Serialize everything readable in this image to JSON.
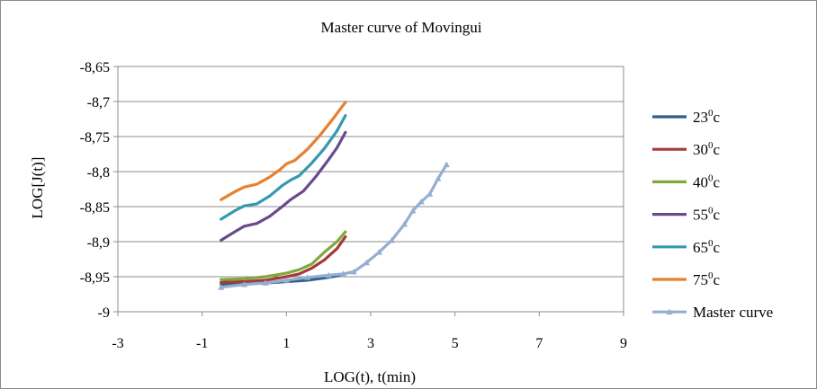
{
  "chart_data": {
    "type": "line",
    "title": "Master curve of Movingui",
    "xlabel": "LOG(t), t(min)",
    "ylabel": "LOG[J(t)]",
    "xlim": [
      -3,
      9
    ],
    "ylim": [
      -9,
      -8.65
    ],
    "xticks": [
      -3,
      -1,
      1,
      3,
      5,
      7,
      9
    ],
    "yticks": [
      -8.65,
      -8.7,
      -8.75,
      -8.8,
      -8.85,
      -8.9,
      -8.95,
      -9
    ],
    "x_tick_labels": [
      "-3",
      "-1",
      "1",
      "3",
      "5",
      "7",
      "9"
    ],
    "y_tick_labels": [
      "-8,65",
      "-8,7",
      "-8,75",
      "-8,8",
      "-8,85",
      "-8,9",
      "-8,95",
      "-9"
    ],
    "grid": "horizontal",
    "legend": "right",
    "series": [
      {
        "name_base": "23",
        "name_sup": "0",
        "name_unit": "c",
        "color": "#2e5f8a",
        "marker": "none",
        "points": [
          [
            -0.55,
            -8.961
          ],
          [
            0,
            -8.96
          ],
          [
            0.5,
            -8.959
          ],
          [
            1,
            -8.957
          ],
          [
            1.5,
            -8.955
          ],
          [
            2,
            -8.951
          ],
          [
            2.35,
            -8.947
          ]
        ]
      },
      {
        "name_base": "30",
        "name_sup": "0",
        "name_unit": "c",
        "color": "#a33b38",
        "marker": "none",
        "points": [
          [
            -0.55,
            -8.958
          ],
          [
            0,
            -8.957
          ],
          [
            0.5,
            -8.955
          ],
          [
            1,
            -8.95
          ],
          [
            1.3,
            -8.946
          ],
          [
            1.6,
            -8.938
          ],
          [
            1.9,
            -8.926
          ],
          [
            2.2,
            -8.91
          ],
          [
            2.4,
            -8.893
          ]
        ]
      },
      {
        "name_base": "40",
        "name_sup": "0",
        "name_unit": "c",
        "color": "#80a83c",
        "marker": "none",
        "points": [
          [
            -0.55,
            -8.954
          ],
          [
            0,
            -8.953
          ],
          [
            0.5,
            -8.95
          ],
          [
            1,
            -8.945
          ],
          [
            1.3,
            -8.94
          ],
          [
            1.6,
            -8.932
          ],
          [
            1.9,
            -8.915
          ],
          [
            2.2,
            -8.9
          ],
          [
            2.4,
            -8.886
          ]
        ]
      },
      {
        "name_base": "55",
        "name_sup": "0",
        "name_unit": "c",
        "color": "#6a4a8e",
        "marker": "none",
        "points": [
          [
            -0.55,
            -8.898
          ],
          [
            -0.2,
            -8.885
          ],
          [
            0,
            -8.878
          ],
          [
            0.3,
            -8.874
          ],
          [
            0.6,
            -8.864
          ],
          [
            0.9,
            -8.85
          ],
          [
            1.1,
            -8.84
          ],
          [
            1.4,
            -8.828
          ],
          [
            1.7,
            -8.807
          ],
          [
            2.0,
            -8.783
          ],
          [
            2.2,
            -8.766
          ],
          [
            2.4,
            -8.744
          ]
        ]
      },
      {
        "name_base": "65",
        "name_sup": "0",
        "name_unit": "c",
        "color": "#3599b0",
        "marker": "none",
        "points": [
          [
            -0.55,
            -8.868
          ],
          [
            -0.2,
            -8.855
          ],
          [
            0,
            -8.849
          ],
          [
            0.3,
            -8.846
          ],
          [
            0.6,
            -8.835
          ],
          [
            0.9,
            -8.82
          ],
          [
            1.1,
            -8.812
          ],
          [
            1.3,
            -8.806
          ],
          [
            1.6,
            -8.788
          ],
          [
            1.9,
            -8.767
          ],
          [
            2.2,
            -8.742
          ],
          [
            2.4,
            -8.72
          ]
        ]
      },
      {
        "name_base": "75",
        "name_sup": "0",
        "name_unit": "c",
        "color": "#e6812f",
        "marker": "none",
        "points": [
          [
            -0.55,
            -8.84
          ],
          [
            -0.2,
            -8.828
          ],
          [
            0,
            -8.822
          ],
          [
            0.3,
            -8.818
          ],
          [
            0.6,
            -8.808
          ],
          [
            0.85,
            -8.797
          ],
          [
            1.0,
            -8.789
          ],
          [
            1.2,
            -8.784
          ],
          [
            1.5,
            -8.768
          ],
          [
            1.8,
            -8.748
          ],
          [
            2.1,
            -8.725
          ],
          [
            2.4,
            -8.701
          ]
        ]
      },
      {
        "name_base": "Master curve",
        "name_sup": "",
        "name_unit": "",
        "color": "#94aed2",
        "marker": "triangle",
        "points": [
          [
            -0.55,
            -8.965
          ],
          [
            0,
            -8.961
          ],
          [
            0.5,
            -8.959
          ],
          [
            1,
            -8.955
          ],
          [
            1.5,
            -8.951
          ],
          [
            2,
            -8.948
          ],
          [
            2.35,
            -8.946
          ],
          [
            2.6,
            -8.943
          ],
          [
            2.9,
            -8.93
          ],
          [
            3.2,
            -8.915
          ],
          [
            3.5,
            -8.898
          ],
          [
            3.8,
            -8.875
          ],
          [
            4.0,
            -8.856
          ],
          [
            4.2,
            -8.843
          ],
          [
            4.4,
            -8.832
          ],
          [
            4.6,
            -8.81
          ],
          [
            4.8,
            -8.79
          ]
        ]
      }
    ]
  }
}
